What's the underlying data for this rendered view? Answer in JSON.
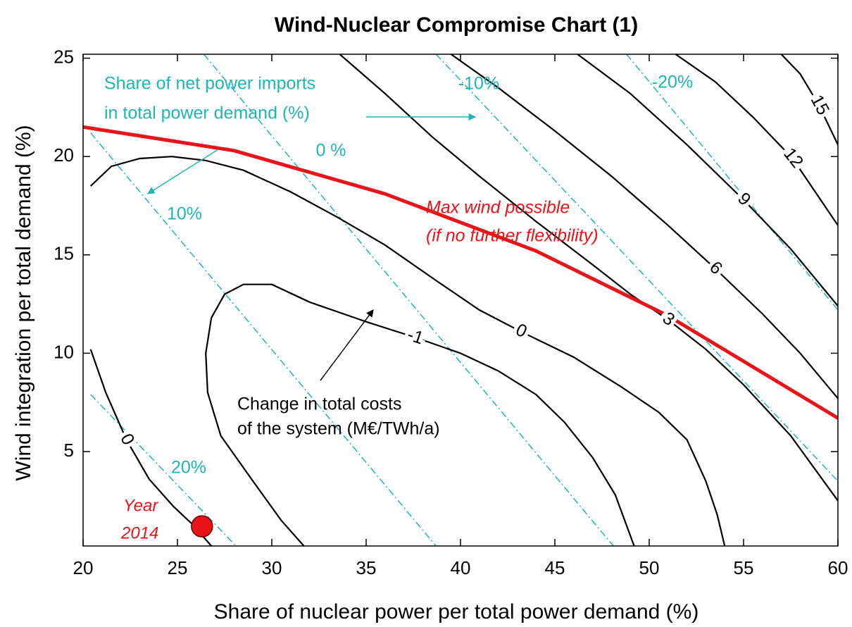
{
  "chart_data": {
    "type": "contour",
    "title": "Wind-Nuclear Compromise Chart (1)",
    "x_label": "Share of nuclear power per total power demand (%)",
    "y_label": "Wind integration per total demand (%)",
    "xlim": [
      20,
      60
    ],
    "ylim": [
      0.2,
      25.2
    ],
    "xticks": [
      20,
      25,
      30,
      35,
      40,
      45,
      50,
      55,
      60
    ],
    "yticks": [
      5,
      10,
      15,
      20,
      25
    ],
    "contours": [
      {
        "level": -1,
        "color": "#000000",
        "x": [
          31.7,
          30.5,
          29,
          27.3,
          26.6,
          26.5,
          26.8,
          27.5,
          28.5,
          30,
          32,
          35,
          37.6,
          40,
          42,
          44,
          45.5,
          47,
          48.2,
          49.2
        ],
        "y": [
          0.2,
          1.5,
          3.5,
          5.8,
          8,
          10,
          11.8,
          13,
          13.5,
          13.5,
          12.6,
          11.6,
          10.8,
          10,
          9.1,
          7.9,
          6.5,
          4.7,
          2.8,
          0.2
        ]
      },
      {
        "level": 0,
        "color": "#000000",
        "x": [
          20.4,
          21.5,
          23,
          24.7,
          26.5,
          28.5,
          31,
          33.5,
          36,
          38.7,
          41,
          43.2,
          46,
          48.5,
          50.5,
          52,
          53,
          53.6,
          54
        ],
        "y": [
          18.5,
          19.5,
          19.9,
          20,
          19.8,
          19.3,
          18.2,
          16.9,
          15.5,
          13.7,
          12.2,
          11.1,
          9.8,
          8.3,
          7,
          5.6,
          3.5,
          1.8,
          0.2
        ]
      },
      {
        "level": 0,
        "color": "#000000",
        "x": [
          20.4,
          21.2,
          22.3,
          23.5,
          24.8,
          25.8,
          26.8
        ],
        "y": [
          10.2,
          8,
          5.6,
          3.6,
          2.2,
          1.3,
          0.2
        ]
      },
      {
        "level": 3,
        "color": "#000000",
        "x": [
          33.6,
          36,
          38.5,
          41,
          44,
          47,
          49,
          51,
          53,
          55,
          57.5,
          60
        ],
        "y": [
          25.2,
          23.2,
          21,
          19,
          16.7,
          14.5,
          13,
          11.7,
          10.2,
          8.4,
          5.8,
          2.5
        ]
      },
      {
        "level": 6,
        "color": "#000000",
        "x": [
          39.5,
          42,
          45,
          48,
          51,
          53.5,
          56,
          58,
          60
        ],
        "y": [
          25.2,
          23.5,
          21.3,
          19,
          16.5,
          14.3,
          12,
          10,
          7.7
        ]
      },
      {
        "level": 9,
        "color": "#000000",
        "x": [
          46.2,
          49,
          52,
          55,
          57.5,
          60
        ],
        "y": [
          25.2,
          23.2,
          20.6,
          17.8,
          15.3,
          12.4
        ]
      },
      {
        "level": 12,
        "color": "#000000",
        "x": [
          51.4,
          53.5,
          55.5,
          57.6,
          60
        ],
        "y": [
          25.2,
          23.8,
          22,
          19.9,
          16.5
        ]
      },
      {
        "level": 15,
        "color": "#000000",
        "x": [
          57,
          58,
          59,
          60
        ],
        "y": [
          25.2,
          24.2,
          22.6,
          20.6
        ]
      }
    ],
    "import_lines": [
      {
        "level": {
          "value": -20,
          "label": "-20%"
        },
        "color": "#20b5b5",
        "x": [
          48.8,
          60
        ],
        "y": [
          25.2,
          12.2
        ]
      },
      {
        "level": {
          "value": -10,
          "label": "-10%"
        },
        "color": "#20b5b5",
        "x": [
          38.7,
          60
        ],
        "y": [
          25.2,
          3.5
        ]
      },
      {
        "level": {
          "value": 0,
          "label": "0 %"
        },
        "color": "#20b5b5",
        "x": [
          26.4,
          48.1
        ],
        "y": [
          25.2,
          0.2
        ]
      },
      {
        "level": {
          "value": 10,
          "label": "10%"
        },
        "color": "#20b5b5",
        "x": [
          20.4,
          38.7
        ],
        "y": [
          21.2,
          0.2
        ]
      },
      {
        "level": {
          "value": 20,
          "label": "20%"
        },
        "color": "#20b5b5",
        "x": [
          20.4,
          28.1
        ],
        "y": [
          7.9,
          0.2
        ]
      }
    ],
    "import_label": [
      "Share of net power imports",
      "in total power demand (%)"
    ],
    "max_wind": {
      "name": [
        "Max wind possible",
        "(if no further flexibility)"
      ],
      "color": "#e8141a",
      "x": [
        20,
        28,
        36,
        44,
        51,
        60
      ],
      "y": [
        21.5,
        20.3,
        18.1,
        15.2,
        11.9,
        6.7
      ]
    },
    "cost_label": [
      "Change in total costs",
      "of the system (M€/TWh/a)"
    ],
    "point": {
      "label": [
        "Year",
        "2014"
      ],
      "x": 26.3,
      "y": 1.2,
      "color": "#e8141a"
    }
  }
}
